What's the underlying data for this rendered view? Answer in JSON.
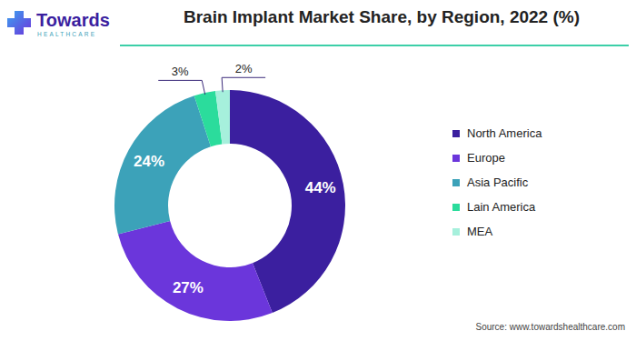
{
  "chart_data": {
    "type": "donut",
    "title": "Brain Implant Market Share, by Region, 2022 (%)",
    "categories": [
      "North America",
      "Europe",
      "Asia Pacific",
      "Lain America",
      "MEA"
    ],
    "values": [
      44,
      27,
      24,
      3,
      2
    ],
    "value_labels": [
      "44%",
      "27%",
      "24%",
      "3%",
      "2%"
    ],
    "colors": [
      "#3b1f9f",
      "#6b36db",
      "#3ca2b9",
      "#2bdc9c",
      "#a6f0dc"
    ],
    "data_labels": true,
    "legend": "right",
    "source": "Source: www.towardshealthcare.com",
    "logo": {
      "name": "Towards",
      "tagline": "HEALTHCARE"
    }
  }
}
